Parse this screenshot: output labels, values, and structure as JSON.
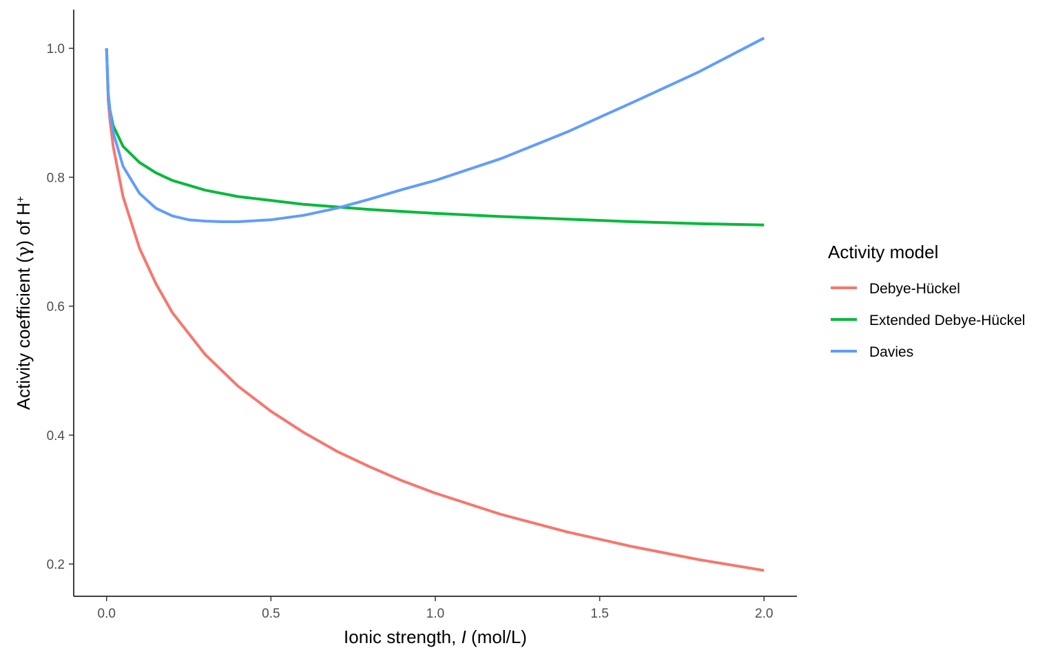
{
  "chart_data": {
    "type": "line",
    "title": "",
    "xlabel_prefix": "Ionic strength, ",
    "xlabel_italic": "I",
    "xlabel_suffix": " (mol/L)",
    "ylabel_prefix": "Activity coefficient (",
    "ylabel_symbol": "γ",
    "ylabel_mid": ") of H",
    "ylabel_sup": "+",
    "xlim": [
      -0.1,
      2.1
    ],
    "ylim": [
      0.15,
      1.06
    ],
    "x_ticks": [
      0.0,
      0.5,
      1.0,
      1.5,
      2.0
    ],
    "x_tick_labels": [
      "0.0",
      "0.5",
      "1.0",
      "1.5",
      "2.0"
    ],
    "y_ticks": [
      0.2,
      0.4,
      0.6,
      0.8,
      1.0
    ],
    "y_tick_labels": [
      "0.2",
      "0.4",
      "0.6",
      "0.8",
      "1.0"
    ],
    "grid": false,
    "legend": {
      "title": "Activity model",
      "position": "right"
    },
    "series": [
      {
        "name": "Debye-Hückel",
        "color": "#F8766D",
        "x": [
          0,
          0.005,
          0.01,
          0.02,
          0.05,
          0.1,
          0.15,
          0.2,
          0.3,
          0.4,
          0.5,
          0.6,
          0.7,
          0.8,
          0.9,
          1.0,
          1.2,
          1.4,
          1.6,
          1.8,
          2.0
        ],
        "y": [
          1.0,
          0.92,
          0.89,
          0.848,
          0.77,
          0.69,
          0.635,
          0.59,
          0.525,
          0.476,
          0.437,
          0.404,
          0.375,
          0.351,
          0.329,
          0.31,
          0.277,
          0.25,
          0.227,
          0.207,
          0.19
        ]
      },
      {
        "name": "Extended Debye-Hückel",
        "color": "#00BA38",
        "x": [
          0,
          0.005,
          0.01,
          0.02,
          0.05,
          0.1,
          0.15,
          0.2,
          0.3,
          0.4,
          0.5,
          0.6,
          0.7,
          0.8,
          0.9,
          1.0,
          1.2,
          1.4,
          1.6,
          1.8,
          2.0
        ],
        "y": [
          1.0,
          0.93,
          0.905,
          0.88,
          0.848,
          0.823,
          0.807,
          0.795,
          0.78,
          0.77,
          0.764,
          0.758,
          0.754,
          0.75,
          0.747,
          0.744,
          0.739,
          0.735,
          0.731,
          0.728,
          0.726
        ]
      },
      {
        "name": "Davies",
        "color": "#619CFF",
        "x": [
          0,
          0.005,
          0.01,
          0.02,
          0.05,
          0.1,
          0.15,
          0.2,
          0.25,
          0.3,
          0.35,
          0.4,
          0.5,
          0.6,
          0.7,
          0.8,
          0.9,
          1.0,
          1.2,
          1.4,
          1.6,
          1.8,
          2.0
        ],
        "y": [
          1.0,
          0.93,
          0.905,
          0.87,
          0.817,
          0.775,
          0.752,
          0.74,
          0.734,
          0.732,
          0.731,
          0.731,
          0.734,
          0.741,
          0.752,
          0.766,
          0.781,
          0.795,
          0.829,
          0.87,
          0.916,
          0.963,
          1.016
        ]
      }
    ]
  }
}
